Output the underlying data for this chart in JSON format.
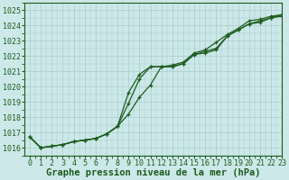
{
  "xlabel": "Graphe pression niveau de la mer (hPa)",
  "background_color": "#cce8e8",
  "grid_color": "#aacccc",
  "line_color": "#1e5c1e",
  "xlim": [
    -0.5,
    23
  ],
  "ylim": [
    1015.5,
    1025.5
  ],
  "yticks": [
    1016,
    1017,
    1018,
    1019,
    1020,
    1021,
    1022,
    1023,
    1024,
    1025
  ],
  "xticks": [
    0,
    1,
    2,
    3,
    4,
    5,
    6,
    7,
    8,
    9,
    10,
    11,
    12,
    13,
    14,
    15,
    16,
    17,
    18,
    19,
    20,
    21,
    22,
    23
  ],
  "series1": [
    1016.7,
    1016.0,
    1016.1,
    1016.2,
    1016.4,
    1016.5,
    1016.6,
    1016.9,
    1017.4,
    1018.2,
    1019.3,
    1020.1,
    1021.3,
    1021.4,
    1021.6,
    1022.2,
    1022.4,
    1022.9,
    1023.4,
    1023.8,
    1024.3,
    1024.4,
    1024.6,
    1024.7
  ],
  "series2": [
    1016.7,
    1016.0,
    1016.1,
    1016.2,
    1016.4,
    1016.5,
    1016.6,
    1016.9,
    1017.4,
    1018.9,
    1020.5,
    1021.3,
    1021.3,
    1021.3,
    1021.5,
    1022.1,
    1022.3,
    1022.5,
    1023.3,
    1023.7,
    1024.1,
    1024.3,
    1024.5,
    1024.6
  ],
  "series3": [
    1016.7,
    1016.0,
    1016.1,
    1016.2,
    1016.4,
    1016.5,
    1016.6,
    1016.9,
    1017.4,
    1019.6,
    1020.8,
    1021.3,
    1021.3,
    1021.3,
    1021.5,
    1022.1,
    1022.2,
    1022.4,
    1023.3,
    1023.7,
    1024.1,
    1024.2,
    1024.5,
    1024.7
  ],
  "markersize": 3.5,
  "linewidth": 0.9,
  "xlabel_fontsize": 7.5,
  "tick_fontsize": 6.0
}
